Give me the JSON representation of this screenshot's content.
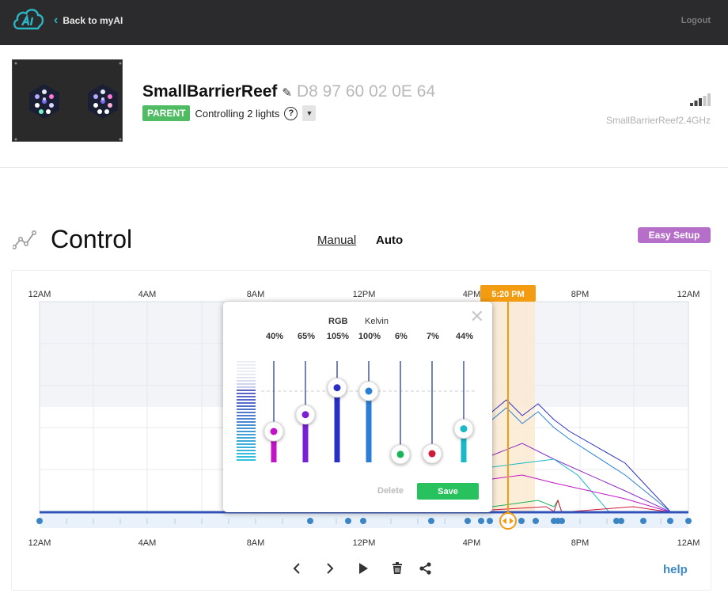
{
  "topbar": {
    "back_label": "Back to myAI",
    "logout_label": "Logout",
    "logo_icon": "ai-cloud-logo-icon"
  },
  "device": {
    "name": "SmallBarrierReef",
    "mac": "D8 97 60 02 0E 64",
    "role_badge": "PARENT",
    "controlling": "Controlling 2 lights",
    "help_symbol": "?",
    "dropdown_symbol": "▼",
    "ssid": "SmallBarrierReef2.4GHz"
  },
  "control": {
    "title": "Control",
    "mode_manual": "Manual",
    "mode_auto": "Auto",
    "easy_setup": "Easy Setup",
    "help": "help"
  },
  "chart": {
    "top_ticks": [
      "12AM",
      "4AM",
      "8AM",
      "12PM",
      "4PM",
      "8PM",
      "12AM"
    ],
    "bottom_ticks": [
      "12AM",
      "4AM",
      "8AM",
      "12PM",
      "4PM",
      "8PM",
      "12AM"
    ],
    "current_time": "5:20 PM",
    "colors": {
      "accent": "#f39c12",
      "blue": "#2f52b8",
      "dots": "#3c85c5"
    }
  },
  "popup": {
    "tab_rgb": "RGB",
    "tab_kelvin": "Kelvin",
    "channels": [
      {
        "name": "uv",
        "percent_label": "40%",
        "level": 0.4,
        "color": "#c214c6"
      },
      {
        "name": "violet",
        "percent_label": "65%",
        "level": 0.65,
        "color": "#7a1fd4"
      },
      {
        "name": "royal-blue",
        "percent_label": "105%",
        "level": 1.05,
        "color": "#2a2fc4"
      },
      {
        "name": "blue",
        "percent_label": "100%",
        "level": 1.0,
        "color": "#2a7fd4"
      },
      {
        "name": "green",
        "percent_label": "6%",
        "level": 0.06,
        "color": "#19b35a"
      },
      {
        "name": "deep-red",
        "percent_label": "7%",
        "level": 0.07,
        "color": "#d11a3a"
      },
      {
        "name": "cool-white",
        "percent_label": "44%",
        "level": 0.44,
        "color": "#1ab8c8"
      }
    ],
    "delete_label": "Delete",
    "save_label": "Save"
  }
}
